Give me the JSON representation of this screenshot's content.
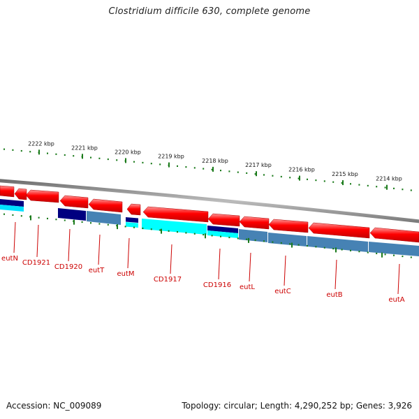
{
  "title": "Clostridium difficile 630, complete genome",
  "footer": {
    "accession": "Accession: NC_009089",
    "summary": "Topology: circular; Length: 4,290,252 bp; Genes: 3,926"
  },
  "colors": {
    "forward_gene": "#ff0000",
    "reverse_gene_dark": "#000080",
    "reverse_gene_mid": "#4682b4",
    "reverse_gene_light": "#00ffff",
    "backbone": "#808080",
    "ticks": "#1a7a1a",
    "labels": "#cc0000"
  },
  "ruler": [
    {
      "label": "2222 kbp",
      "kbp": 2222
    },
    {
      "label": "2221 kbp",
      "kbp": 2221
    },
    {
      "label": "2220 kbp",
      "kbp": 2220
    },
    {
      "label": "2219 kbp",
      "kbp": 2219
    },
    {
      "label": "2218 kbp",
      "kbp": 2218
    },
    {
      "label": "2217 kbp",
      "kbp": 2217
    },
    {
      "label": "2216 kbp",
      "kbp": 2216
    },
    {
      "label": "2215 kbp",
      "kbp": 2215
    },
    {
      "label": "2214 kbp",
      "kbp": 2214
    }
  ],
  "gene_labels": [
    "eutN",
    "CD1921",
    "CD1920",
    "eutT",
    "eutM",
    "CD1917",
    "CD1916",
    "eutL",
    "eutC",
    "eutB",
    "eutA"
  ]
}
